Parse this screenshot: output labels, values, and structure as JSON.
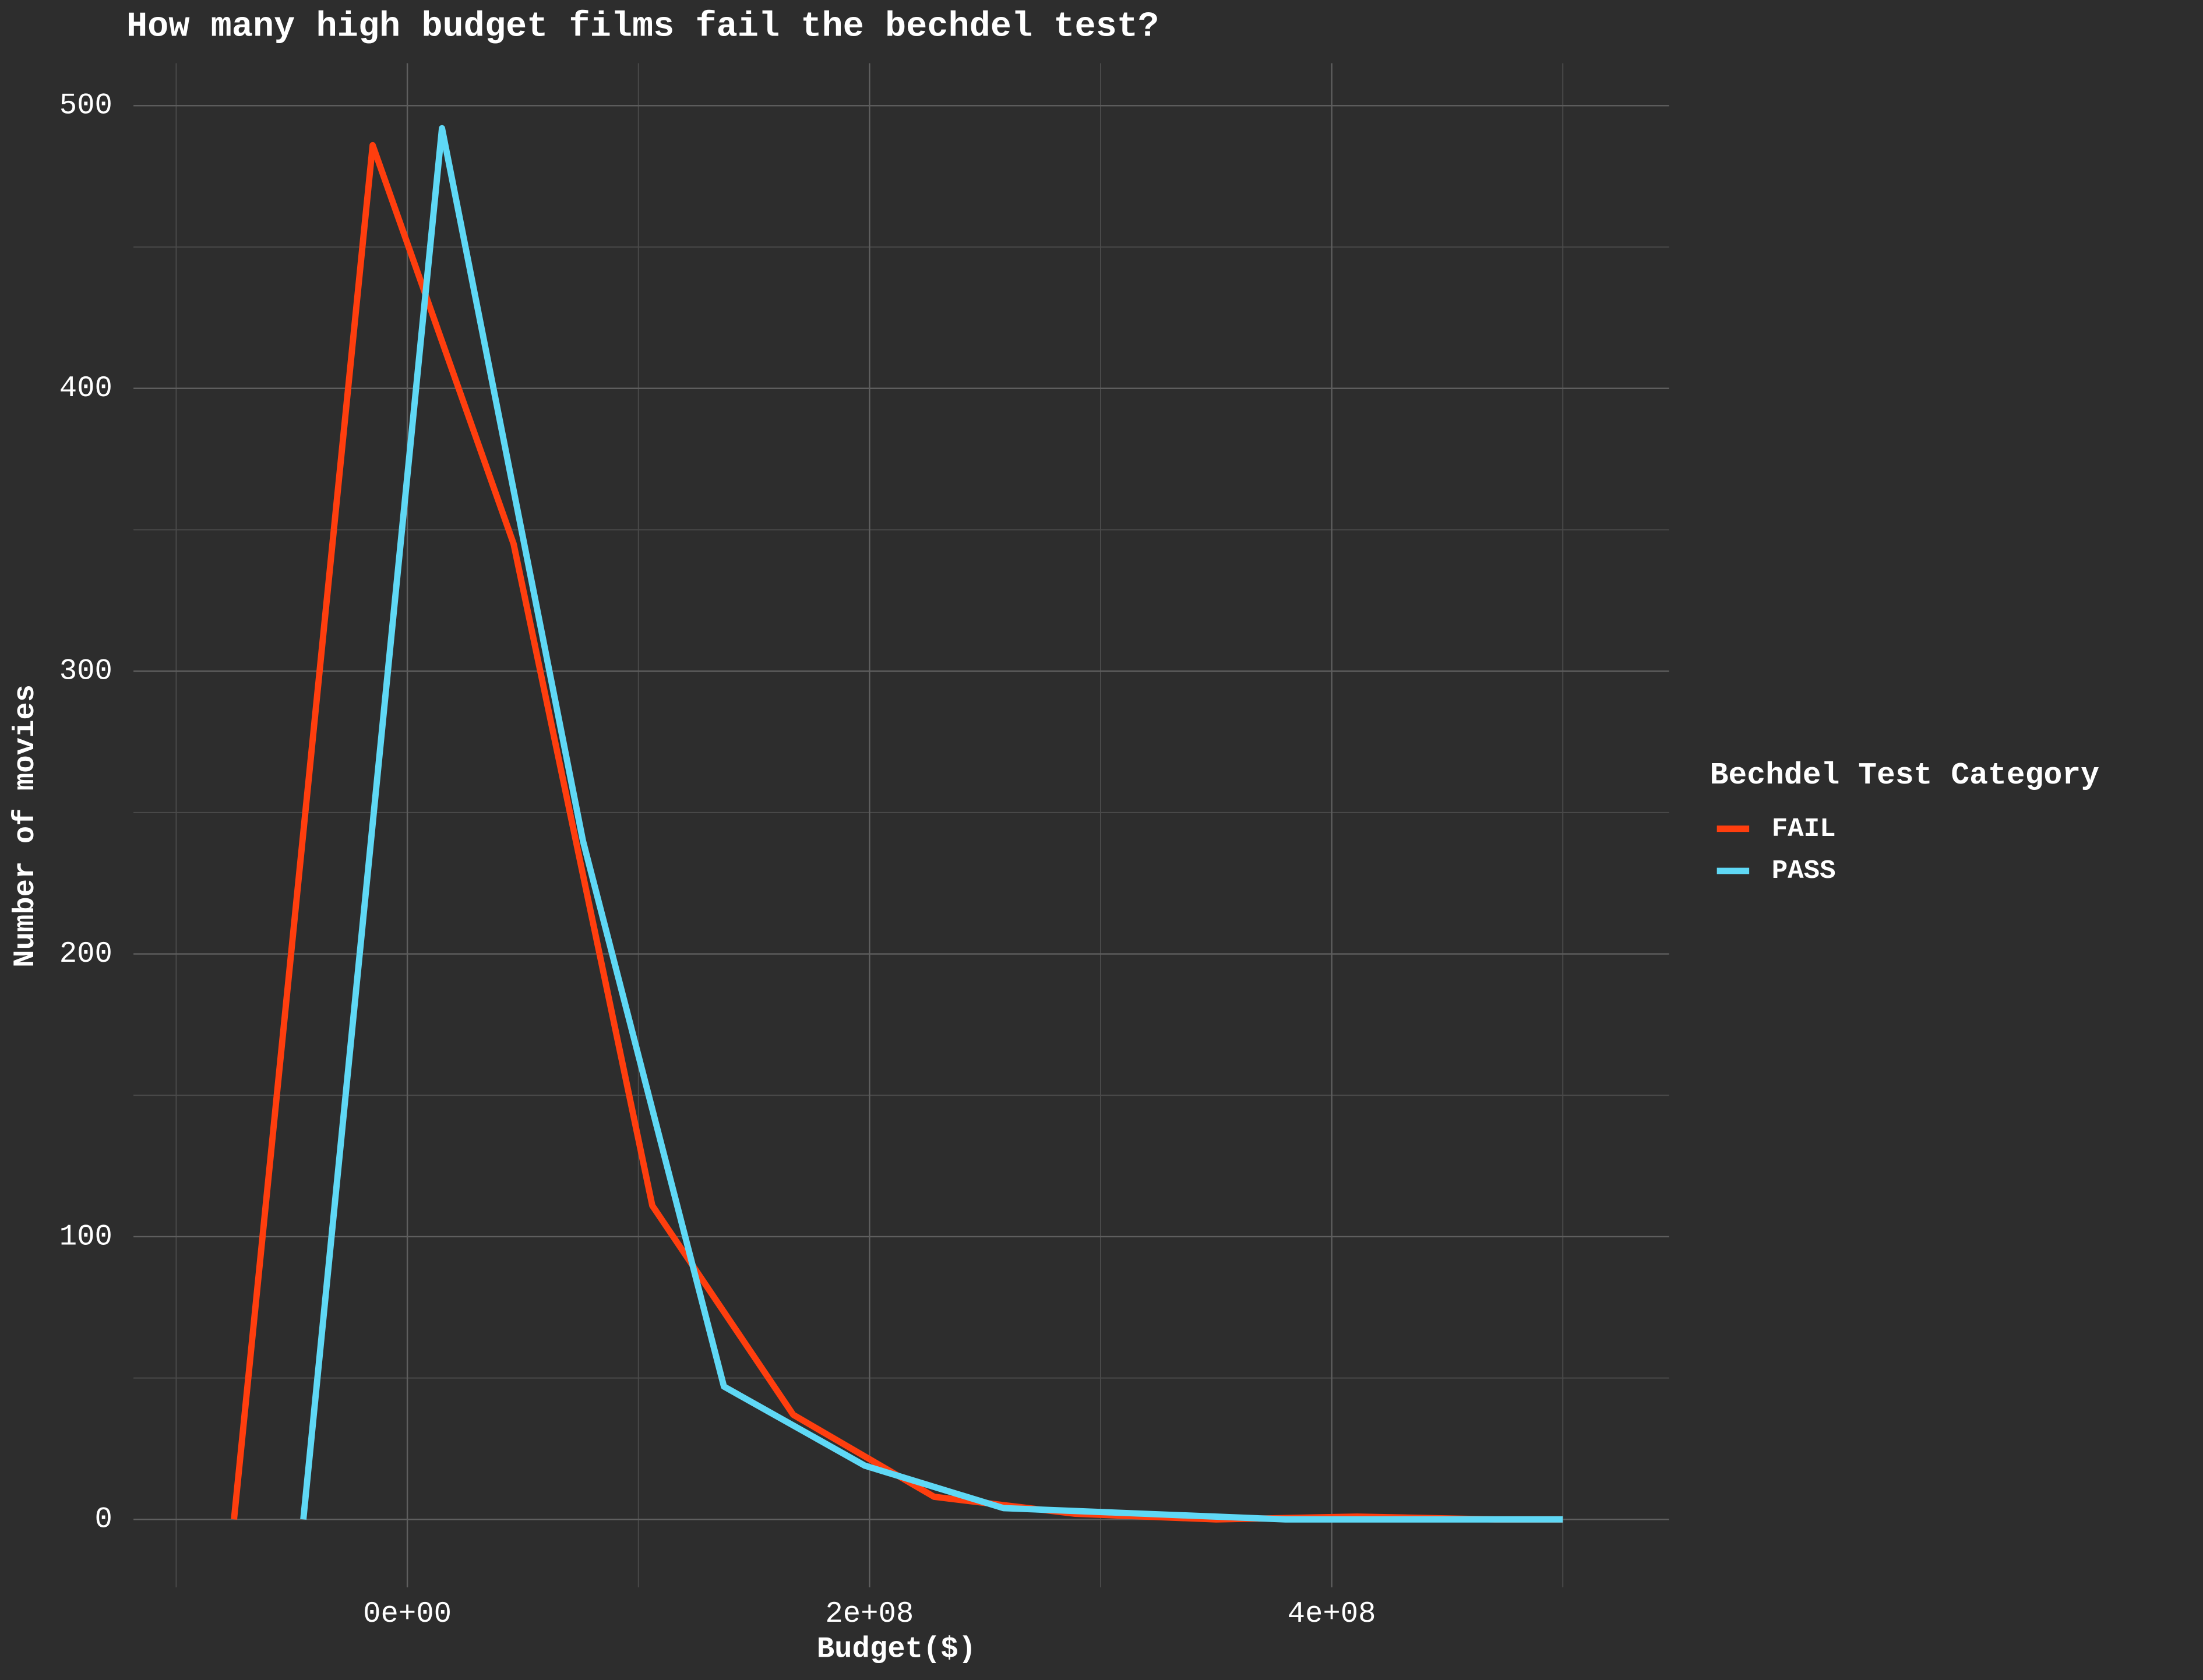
{
  "chart_data": {
    "type": "line",
    "title": "How many high budget films fail the bechdel test?",
    "x_label": "Budget($)",
    "y_label": "Number of movies",
    "legend_title": "Bechdel Test Category",
    "legend_position": "right",
    "grid": true,
    "background": "#2d2d2d",
    "xlim": [
      -118500000,
      546000000
    ],
    "ylim": [
      -24,
      515
    ],
    "xticks": [
      {
        "value": 0,
        "label": "0e+00"
      },
      {
        "value": 200000000,
        "label": "2e+08"
      },
      {
        "value": 400000000,
        "label": "4e+08"
      }
    ],
    "x_minor_ticks": [
      -100000000,
      100000000,
      300000000,
      500000000
    ],
    "yticks": [
      0,
      100,
      200,
      300,
      400,
      500
    ],
    "y_minor_ticks": [
      50,
      150,
      250,
      350,
      450
    ],
    "series": [
      {
        "name": "FAIL",
        "color": "#ff3e0e",
        "x": [
          -75000000,
          -15000000,
          46000000,
          106000000,
          167000000,
          228000000,
          289000000,
          350000000,
          411000000,
          471000000,
          500000000
        ],
        "values": [
          0,
          486,
          345,
          111,
          37,
          8,
          2,
          0,
          1,
          0,
          0
        ]
      },
      {
        "name": "PASS",
        "color": "#5fd8f5",
        "x": [
          -45000000,
          15000000,
          76000000,
          137000000,
          198000000,
          258000000,
          319000000,
          380000000,
          441000000,
          500000000
        ],
        "values": [
          0,
          492,
          240,
          47,
          19,
          4,
          2,
          0,
          0,
          0
        ]
      }
    ]
  }
}
